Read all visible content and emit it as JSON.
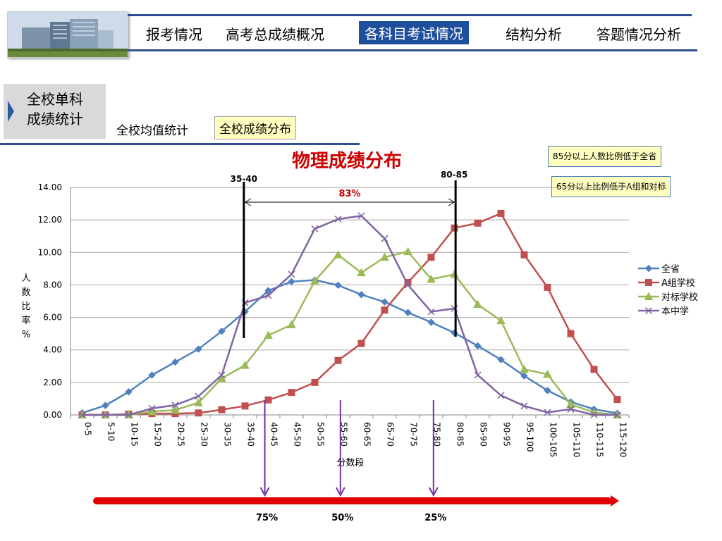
{
  "header": {
    "nav": [
      {
        "label": "报考情况",
        "active": false
      },
      {
        "label": "高考总成绩概况",
        "active": false
      },
      {
        "label": "各科目考试情况",
        "active": true
      },
      {
        "label": "结构分析",
        "active": false
      },
      {
        "label": "答题情况分析",
        "active": false
      }
    ]
  },
  "subnav": {
    "side_label": "全校单科\n成绩统计",
    "tabs": [
      {
        "label": "全校均值统计",
        "active": false
      },
      {
        "label": "全校成绩分布",
        "active": true
      }
    ]
  },
  "notes": [
    "85分以上人数比例低于全省",
    "65分以上比例低于A组和对标"
  ],
  "annotations": {
    "left_marker": "35-40",
    "right_marker": "80-85",
    "span_label": "83%",
    "percentiles": [
      "75%",
      "50%",
      "25%"
    ]
  },
  "colors": {
    "brand": "#1f4e9c",
    "title_red": "#cc0000",
    "series": [
      "#4f81bd",
      "#c0504d",
      "#9bbb59",
      "#8064a2"
    ],
    "marker_line": "#000000",
    "arrow_purple": "#7030a0",
    "range_bar": "#e00000"
  },
  "chart_data": {
    "type": "line",
    "title": "物理成绩分布",
    "xlabel": "分数段",
    "ylabel": "人数比率%",
    "ylim": [
      0,
      14
    ],
    "yticks": [
      "0.00",
      "2.00",
      "4.00",
      "6.00",
      "8.00",
      "10.00",
      "12.00",
      "14.00"
    ],
    "legend_position": "right",
    "categories": [
      "0-5",
      "5-10",
      "10-15",
      "15-20",
      "20-25",
      "25-30",
      "30-35",
      "35-40",
      "40-45",
      "45-50",
      "50-55",
      "55-60",
      "60-65",
      "65-70",
      "70-75",
      "75-80",
      "80-85",
      "85-90",
      "90-95",
      "95-100",
      "100-105",
      "105-110",
      "110-115",
      "115-120"
    ],
    "series": [
      {
        "name": "全省",
        "marker": "diamond",
        "values": [
          0.12,
          0.58,
          1.42,
          2.45,
          3.25,
          4.05,
          5.15,
          6.35,
          7.65,
          8.2,
          8.3,
          7.98,
          7.4,
          6.95,
          6.3,
          5.7,
          5.05,
          4.25,
          3.4,
          2.4,
          1.5,
          0.8,
          0.35,
          0.1
        ]
      },
      {
        "name": "A组学校",
        "marker": "square",
        "values": [
          0.0,
          0.0,
          0.05,
          0.08,
          0.08,
          0.12,
          0.32,
          0.55,
          0.92,
          1.38,
          2.0,
          3.35,
          4.4,
          6.45,
          8.15,
          9.7,
          11.5,
          11.8,
          12.4,
          9.85,
          7.85,
          5.0,
          2.8,
          0.95
        ]
      },
      {
        "name": "对标学校",
        "marker": "triangle",
        "values": [
          0.0,
          0.0,
          0.0,
          0.2,
          0.3,
          0.75,
          2.25,
          3.05,
          4.9,
          5.55,
          8.25,
          9.85,
          8.75,
          9.7,
          10.05,
          8.35,
          8.65,
          6.8,
          5.8,
          2.8,
          2.5,
          0.65,
          0.15,
          0.0
        ]
      },
      {
        "name": "本中学",
        "marker": "x",
        "values": [
          0.0,
          0.0,
          0.0,
          0.4,
          0.6,
          1.15,
          2.45,
          6.9,
          7.35,
          8.65,
          11.45,
          12.05,
          12.25,
          10.85,
          8.0,
          6.35,
          6.55,
          2.45,
          1.2,
          0.55,
          0.15,
          0.35,
          0.0,
          0.0
        ]
      }
    ]
  }
}
